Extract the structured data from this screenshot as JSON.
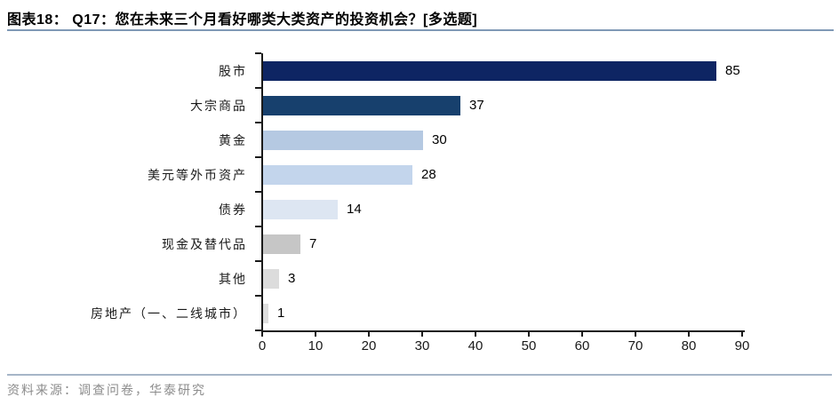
{
  "header": {
    "title": "图表18： Q17：您在未来三个月看好哪类大类资产的投资机会？[多选题]"
  },
  "footer": {
    "source": "资料来源：调查问卷，华泰研究"
  },
  "colors": {
    "title_rule": "#7f99b6",
    "footer_rule": "#a6b6c8",
    "axis": "#1a1a1a",
    "dark_navy": "#0e2563",
    "navy": "#17406d",
    "light_blue": "#b5c9e2",
    "lighter_blue": "#c3d5ec",
    "lightest_blue": "#dde6f2",
    "gray": "#c6c6c6",
    "light_gray": "#dcdcdc"
  },
  "chart_data": {
    "type": "bar",
    "orientation": "horizontal",
    "title": "图表18： Q17：您在未来三个月看好哪类大类资产的投资机会？[多选题]",
    "categories": [
      "股市",
      "大宗商品",
      "黄金",
      "美元等外币资产",
      "债券",
      "现金及替代品",
      "其他",
      "房地产（一、二线城市）"
    ],
    "values": [
      85,
      37,
      30,
      28,
      14,
      7,
      3,
      1
    ],
    "bar_colors": [
      "#0e2563",
      "#17406d",
      "#b5c9e2",
      "#c3d5ec",
      "#dde6f2",
      "#c6c6c6",
      "#dcdcdc",
      "#dddddd"
    ],
    "xlabel": "",
    "ylabel": "",
    "xlim": [
      0,
      90
    ],
    "x_ticks": [
      0,
      10,
      20,
      30,
      40,
      50,
      60,
      70,
      80,
      90
    ],
    "grid": false,
    "legend": false,
    "data_labels": true
  }
}
